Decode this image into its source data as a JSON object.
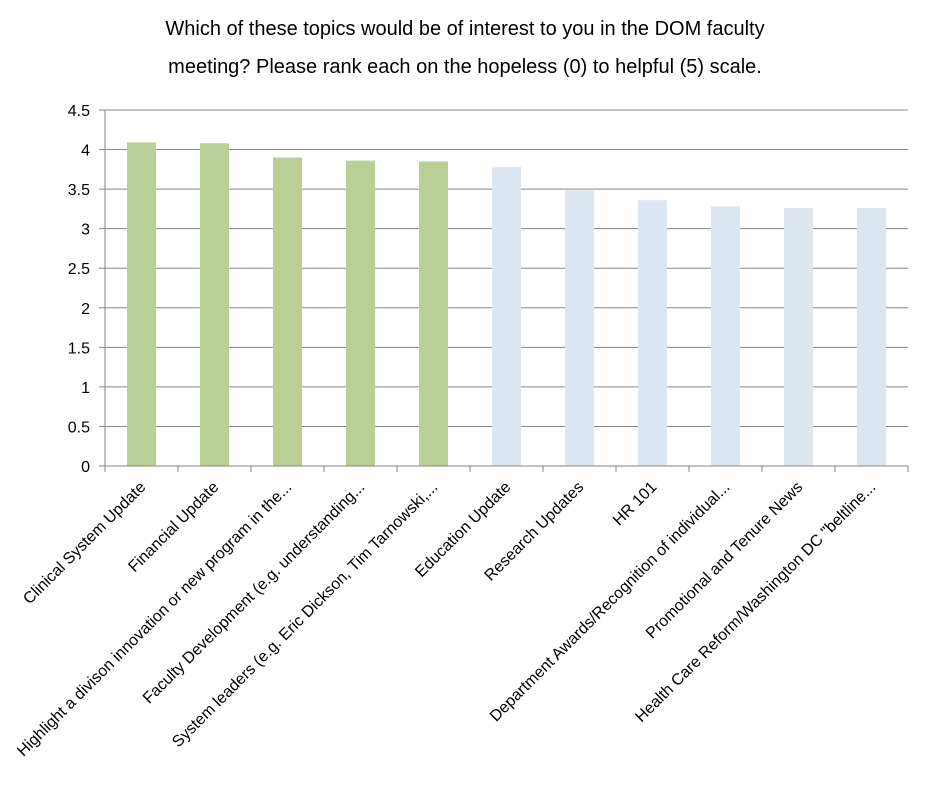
{
  "chart_data": {
    "type": "bar",
    "title_lines": [
      "Which of these topics would be of interest to you in the DOM faculty",
      "meeting? Please rank each on the hopeless (0) to helpful (5) scale."
    ],
    "categories": [
      "Clinical System Update",
      "Financial Update",
      "Highlight a divison innovation or new program in the...",
      "Faculty Development (e.g. understanding...",
      "System leaders (e.g. Eric Dickson, Tim Tarnowski,...",
      "Education Update",
      "Research Updates",
      "HR 101",
      "Department Awards/Recognition of individual...",
      "Promotional and Tenure News",
      "Health Care Reform/Washington DC \"beltline..."
    ],
    "values": [
      4.09,
      4.08,
      3.9,
      3.86,
      3.85,
      3.78,
      3.48,
      3.36,
      3.28,
      3.26,
      3.26
    ],
    "bar_colors": [
      "#b8cf96",
      "#b8cf96",
      "#b8cf96",
      "#b8cf96",
      "#b8cf96",
      "#dbe6f1",
      "#dbe6f1",
      "#dbe6f1",
      "#dbe6f1",
      "#dbe6f1",
      "#dbe6f1"
    ],
    "yticks": [
      "0",
      "0.5",
      "1",
      "1.5",
      "2",
      "2.5",
      "3",
      "3.5",
      "4",
      "4.5"
    ],
    "ylim": [
      0,
      4.5
    ],
    "grid": true,
    "legend": "none",
    "gridline_color": "#868686",
    "axis_color": "#868686"
  }
}
